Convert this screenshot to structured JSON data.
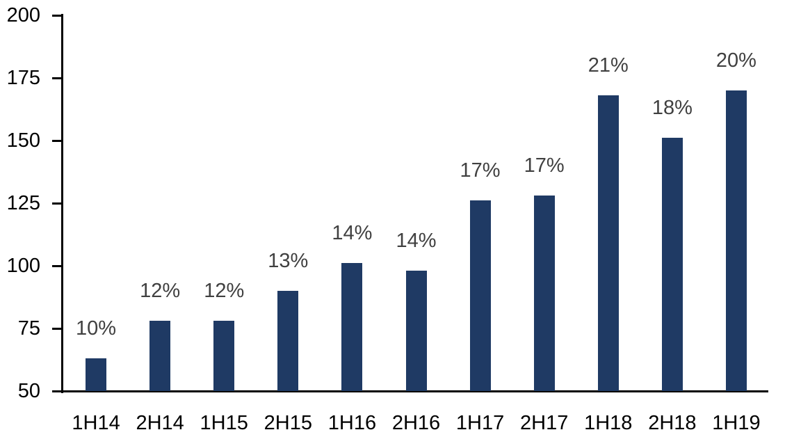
{
  "chart_data": {
    "type": "bar",
    "title": "",
    "xlabel": "",
    "ylabel": "",
    "categories": [
      "1H14",
      "2H14",
      "1H15",
      "2H15",
      "1H16",
      "2H16",
      "1H17",
      "2H17",
      "1H18",
      "2H18",
      "1H19"
    ],
    "values": [
      63,
      78,
      78,
      90,
      101,
      98,
      126,
      128,
      168,
      151,
      170
    ],
    "bar_labels": [
      "10%",
      "12%",
      "12%",
      "13%",
      "14%",
      "14%",
      "17%",
      "17%",
      "21%",
      "18%",
      "20%"
    ],
    "ylim": [
      50,
      200
    ],
    "y_ticks": [
      50,
      75,
      100,
      125,
      150,
      175,
      200
    ],
    "grid": false,
    "legend_position": "none",
    "bar_color": "#1f3a64",
    "bar_label_color": "#404040",
    "axis_text_color": "#000000",
    "axis_line_color": "#000000",
    "background_color": "#ffffff"
  }
}
